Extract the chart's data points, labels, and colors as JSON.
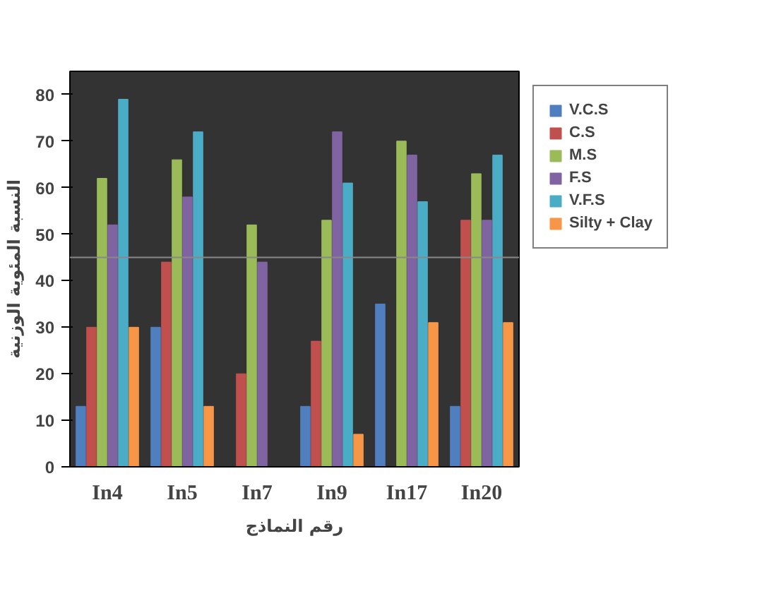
{
  "chart_data": {
    "type": "bar",
    "xlabel": "رقم النماذج",
    "ylabel": "النسبة المئوية الوزنية",
    "categories": [
      "In4",
      "In5",
      "In7",
      "In9",
      "In17",
      "In20"
    ],
    "series": [
      {
        "name": "V.C.S",
        "color": "#4f7fbf",
        "values": [
          13,
          30,
          0,
          13,
          35,
          13
        ]
      },
      {
        "name": "C.S",
        "color": "#c0504d",
        "values": [
          30,
          44,
          20,
          27,
          0,
          53
        ]
      },
      {
        "name": "M.S",
        "color": "#9bbb59",
        "values": [
          62,
          66,
          52,
          53,
          70,
          63
        ]
      },
      {
        "name": "F.S",
        "color": "#8064a2",
        "values": [
          52,
          58,
          44,
          72,
          67,
          53
        ]
      },
      {
        "name": "V.F.S",
        "color": "#4bacc6",
        "values": [
          79,
          72,
          0,
          61,
          57,
          67
        ]
      },
      {
        "name": "Silty + Clay",
        "color": "#f79646",
        "values": [
          30,
          13,
          0,
          7,
          31,
          31
        ]
      }
    ],
    "ylim": [
      0,
      85
    ],
    "yticks": [
      0,
      10,
      20,
      30,
      40,
      50,
      60,
      70,
      80
    ],
    "ref_lines": [
      {
        "axis": "y",
        "value": 45,
        "color": "#888888"
      }
    ],
    "grid": false,
    "legend": "right"
  }
}
